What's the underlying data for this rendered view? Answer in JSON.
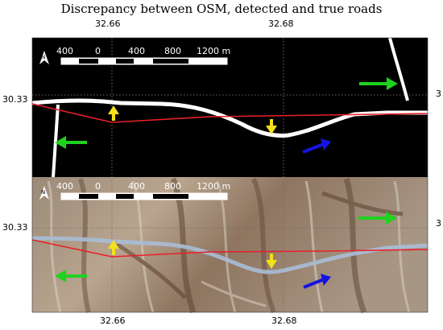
{
  "title": "Discrepancy between OSM, detected and true roads",
  "axes": {
    "top_x_labels": [
      "32.66",
      "32.68"
    ],
    "bottom_x_labels": [
      "32.66",
      "32.68"
    ],
    "left_y_label_top": "30.33",
    "left_y_label_bottom": "30.33",
    "right_y_label_top": "3",
    "right_y_label_bottom": "3"
  },
  "scale_bar": {
    "labels": [
      "400",
      "0",
      "400",
      "800",
      "1200 m"
    ]
  },
  "north_arrow_label": "N",
  "colors": {
    "osm_road": "#e8202a",
    "detected_road": "#ffffff",
    "arrow_green": "#1fd21f",
    "arrow_blue": "#1414e0",
    "arrow_yellow": "#f4e11a",
    "grid": "#888888"
  },
  "arrows": [
    {
      "panel": "top",
      "color": "green",
      "direction": "right"
    },
    {
      "panel": "top",
      "color": "green",
      "direction": "left"
    },
    {
      "panel": "top",
      "color": "yellow",
      "direction": "up"
    },
    {
      "panel": "top",
      "color": "yellow",
      "direction": "down"
    },
    {
      "panel": "top",
      "color": "blue",
      "direction": "up-right"
    },
    {
      "panel": "bottom",
      "color": "green",
      "direction": "right"
    },
    {
      "panel": "bottom",
      "color": "green",
      "direction": "left"
    },
    {
      "panel": "bottom",
      "color": "yellow",
      "direction": "up"
    },
    {
      "panel": "bottom",
      "color": "yellow",
      "direction": "down"
    },
    {
      "panel": "bottom",
      "color": "blue",
      "direction": "up-right"
    }
  ]
}
